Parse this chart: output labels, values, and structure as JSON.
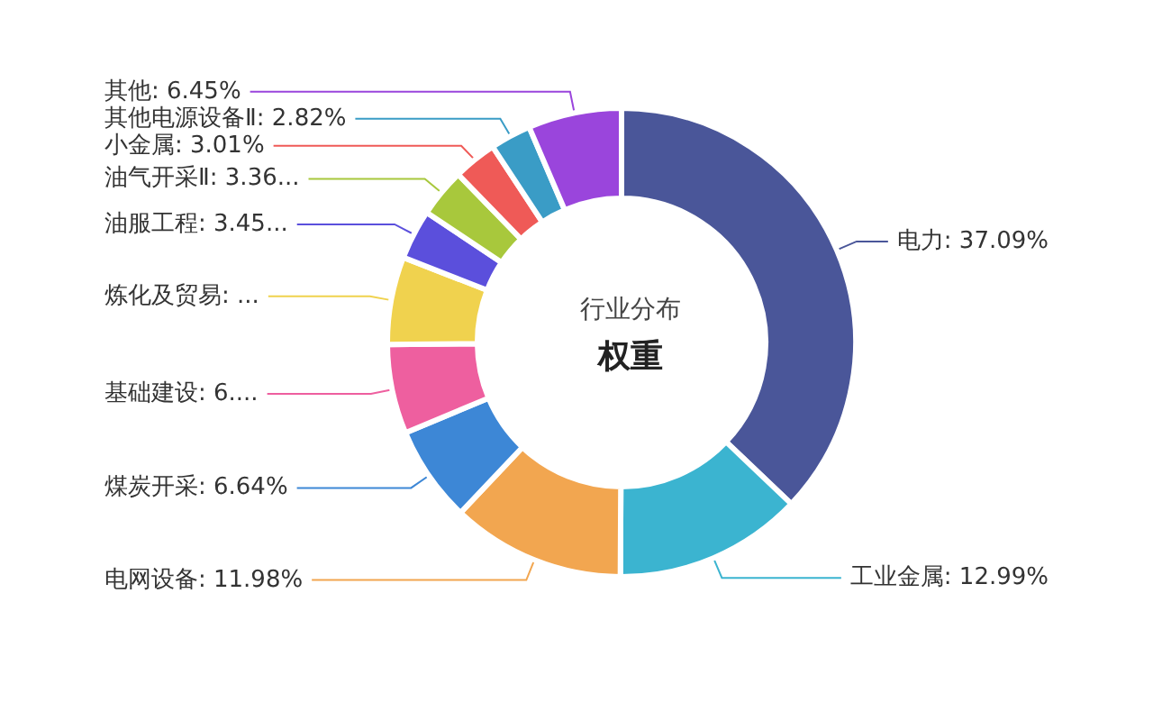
{
  "chart_data": {
    "type": "donut",
    "title": "行业分布",
    "subtitle": "权重",
    "categories": [
      "电力",
      "工业金属",
      "电网设备",
      "煤炭开采",
      "基础建设",
      "炼化及贸易",
      "油服工程",
      "油气开采Ⅱ",
      "小金属",
      "其他电源设备Ⅱ",
      "其他"
    ],
    "values": [
      37.09,
      12.99,
      11.98,
      6.64,
      6.16,
      6.05,
      3.45,
      3.36,
      3.01,
      2.82,
      6.45
    ],
    "value_labels": [
      "37.09%",
      "12.99%",
      "11.98%",
      "6.64%",
      "6....",
      "...",
      "3.45...",
      "3.36...",
      "3.01%",
      "2.82%",
      "6.45%"
    ],
    "colors": [
      "#4a5699",
      "#3bb4d0",
      "#f2a650",
      "#3d87d6",
      "#ee5f9f",
      "#f0d24e",
      "#5b4fdc",
      "#a8c83c",
      "#ef5a57",
      "#3a9cc6",
      "#9a45dc"
    ]
  }
}
